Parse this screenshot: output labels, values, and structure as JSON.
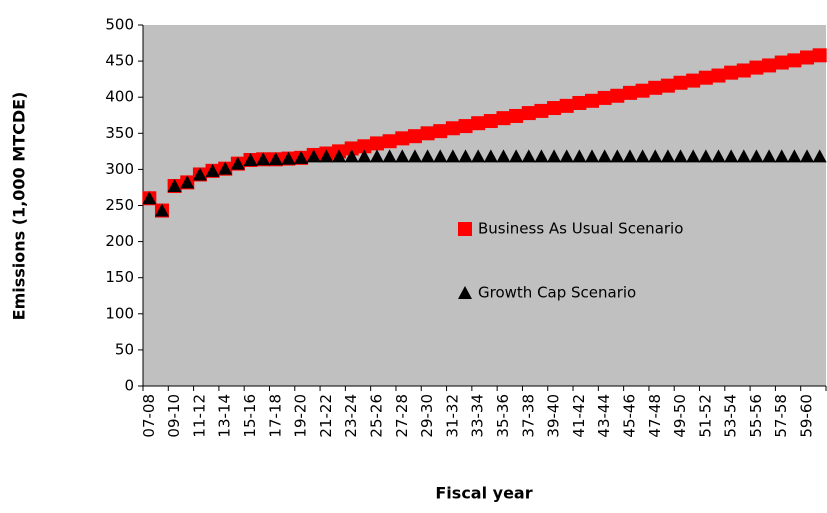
{
  "chart_data": {
    "type": "scatter-line",
    "ylabel": "Emissions (1,000 MTCDE)",
    "xlabel": "Fiscal year",
    "categories": [
      "07-08",
      null,
      "09-10",
      null,
      "11-12",
      null,
      "13-14",
      null,
      "15-16",
      null,
      "17-18",
      null,
      "19-20",
      null,
      "21-22",
      null,
      "23-24",
      null,
      "25-26",
      null,
      "27-28",
      null,
      "29-30",
      null,
      "31-32",
      null,
      "33-34",
      null,
      "35-36",
      null,
      "37-38",
      null,
      "39-40",
      null,
      "41-42",
      null,
      "43-44",
      null,
      "45-46",
      null,
      "47-48",
      null,
      "49-50",
      null,
      "51-52",
      null,
      "53-54",
      null,
      "55-56",
      null,
      "57-58",
      null,
      "59-60",
      null
    ],
    "series": [
      {
        "name": "Business As Usual Scenario",
        "color": "#ff0000",
        "marker": "square",
        "values": [
          260,
          243,
          277,
          282,
          293,
          298,
          301,
          308,
          313,
          314,
          314,
          315,
          316,
          320,
          322,
          325,
          329,
          332,
          336,
          339,
          343,
          346,
          350,
          353,
          357,
          360,
          364,
          367,
          371,
          374,
          378,
          381,
          385,
          388,
          392,
          395,
          399,
          402,
          406,
          409,
          413,
          416,
          420,
          423,
          427,
          430,
          434,
          437,
          441,
          444,
          448,
          451,
          455,
          458
        ]
      },
      {
        "name": "Growth Cap Scenario",
        "color": "#000000",
        "marker": "triangle",
        "values": [
          260,
          243,
          277,
          282,
          293,
          298,
          301,
          308,
          313,
          314,
          314,
          315,
          316,
          318,
          318,
          318,
          318,
          318,
          318,
          318,
          318,
          318,
          318,
          318,
          318,
          318,
          318,
          318,
          318,
          318,
          318,
          318,
          318,
          318,
          318,
          318,
          318,
          318,
          318,
          318,
          318,
          318,
          318,
          318,
          318,
          318,
          318,
          318,
          318,
          318,
          318,
          318,
          318,
          318
        ]
      }
    ],
    "ylim": [
      0,
      500
    ],
    "yticks": [
      0,
      50,
      100,
      150,
      200,
      250,
      300,
      350,
      400,
      450,
      500
    ],
    "plot_background": "#c0c0c0",
    "grid": false
  }
}
